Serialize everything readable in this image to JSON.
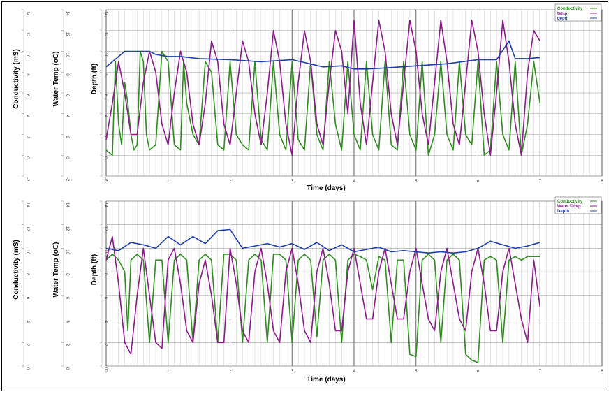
{
  "chart_data": [
    {
      "type": "line",
      "xlabel": "Time (days)",
      "ylabels": [
        "Conductivity (mS)",
        "Water Temp (oC)",
        "Depth (ft)"
      ],
      "xlim": [
        0,
        8
      ],
      "ylim": [
        -2,
        14
      ],
      "xticks": [
        0,
        1,
        2,
        3,
        4,
        5,
        6,
        7,
        8
      ],
      "yticks": [
        -2,
        0,
        2,
        4,
        6,
        8,
        10,
        12,
        14
      ],
      "colors": {
        "conductivity": "#2e8b1e",
        "temp": "#8b1a8b",
        "depth": "#1f3fa8"
      },
      "legend": [
        "Conductivity",
        "temp",
        "depth"
      ],
      "legend_position": "top-right",
      "grid": true,
      "series": [
        {
          "name": "Conductivity",
          "x": [
            0,
            0.1,
            0.15,
            0.2,
            0.25,
            0.3,
            0.35,
            0.4,
            0.45,
            0.5,
            0.55,
            0.6,
            0.65,
            0.7,
            0.8,
            0.9,
            1.0,
            1.1,
            1.2,
            1.25,
            1.3,
            1.4,
            1.5,
            1.6,
            1.7,
            1.8,
            1.9,
            2.0,
            2.1,
            2.2,
            2.3,
            2.4,
            2.5,
            2.6,
            2.7,
            2.8,
            2.9,
            3.0,
            3.1,
            3.2,
            3.3,
            3.4,
            3.5,
            3.6,
            3.7,
            3.8,
            3.9,
            4.0,
            4.1,
            4.2,
            4.3,
            4.4,
            4.5,
            4.6,
            4.7,
            4.8,
            4.9,
            5.0,
            5.1,
            5.2,
            5.3,
            5.4,
            5.5,
            5.6,
            5.7,
            5.8,
            5.9,
            6.0,
            6.1,
            6.2,
            6.3,
            6.4,
            6.5,
            6.6,
            6.7,
            6.8,
            6.9,
            7.0
          ],
          "values": [
            0.5,
            0,
            9,
            3,
            1,
            7,
            5,
            2,
            0.5,
            1,
            10,
            9,
            2,
            0.5,
            1,
            10,
            9,
            1,
            0.5,
            9,
            5,
            2,
            1,
            9,
            8,
            1,
            0.5,
            9,
            2,
            1,
            0.5,
            9,
            1.5,
            0.5,
            9,
            2,
            0.5,
            9,
            1.5,
            0.5,
            9,
            2,
            0.5,
            9,
            3,
            0.5,
            9,
            2,
            0.5,
            9,
            2,
            0.5,
            9,
            1,
            0.5,
            9,
            2,
            0.5,
            9,
            0,
            2,
            9,
            2,
            0.5,
            9,
            2,
            1,
            9,
            0,
            0.5,
            9,
            2,
            0.5,
            9,
            0,
            3,
            9,
            5
          ]
        },
        {
          "name": "temp",
          "x": [
            0,
            0.1,
            0.2,
            0.3,
            0.4,
            0.5,
            0.6,
            0.7,
            0.8,
            0.9,
            1.0,
            1.1,
            1.2,
            1.3,
            1.4,
            1.5,
            1.6,
            1.7,
            1.8,
            1.9,
            2.0,
            2.1,
            2.2,
            2.3,
            2.4,
            2.5,
            2.6,
            2.7,
            2.8,
            2.9,
            3.0,
            3.1,
            3.2,
            3.3,
            3.4,
            3.5,
            3.6,
            3.7,
            3.8,
            3.9,
            4.0,
            4.1,
            4.2,
            4.3,
            4.4,
            4.5,
            4.6,
            4.7,
            4.8,
            4.9,
            5.0,
            5.1,
            5.2,
            5.3,
            5.4,
            5.5,
            5.6,
            5.7,
            5.8,
            5.9,
            6.0,
            6.1,
            6.2,
            6.3,
            6.4,
            6.5,
            6.6,
            6.7,
            6.8,
            6.9,
            7.0
          ],
          "values": [
            1.5,
            5,
            9,
            6,
            2,
            2,
            7,
            10,
            8,
            3,
            1,
            6,
            10,
            8,
            3,
            1,
            5,
            11,
            9,
            3,
            1,
            6,
            11,
            9,
            4,
            1,
            6,
            12,
            9,
            3,
            0,
            7,
            12,
            9,
            3,
            1,
            7,
            12,
            10,
            4,
            13,
            5,
            1,
            7,
            13,
            10,
            4,
            1,
            7,
            13,
            10,
            4,
            1,
            7,
            13,
            9,
            3,
            1,
            7,
            13,
            10,
            4,
            0,
            6,
            13,
            9,
            3,
            0,
            8,
            12,
            11
          ]
        },
        {
          "name": "depth",
          "x": [
            0,
            0.1,
            0.2,
            0.3,
            0.5,
            0.7,
            0.8,
            1.0,
            1.2,
            1.5,
            2.0,
            2.5,
            3.0,
            3.5,
            3.8,
            4.0,
            4.2,
            4.5,
            5.0,
            5.5,
            6.0,
            6.3,
            6.5,
            6.6,
            6.8,
            7.0
          ],
          "values": [
            8.5,
            9,
            9.5,
            10,
            10,
            10,
            9.7,
            9.5,
            9.5,
            9.3,
            9.2,
            9,
            9.2,
            8.5,
            8.6,
            8.3,
            8.3,
            8.4,
            8.6,
            8.8,
            9.2,
            9.2,
            11,
            9.3,
            9.3,
            9.4
          ]
        }
      ]
    },
    {
      "type": "line",
      "xlabel": "Time (days)",
      "ylabels": [
        "Conductivity (mS)",
        "Water Temp (oC)",
        "Depth (ft)"
      ],
      "xlim": [
        0,
        8
      ],
      "ylim": [
        0,
        14
      ],
      "xticks": [
        0,
        1,
        2,
        3,
        4,
        5,
        6,
        7,
        8
      ],
      "yticks": [
        0,
        2,
        4,
        6,
        8,
        10,
        12,
        14
      ],
      "colors": {
        "conductivity": "#2e8b1e",
        "temp": "#8b1a8b",
        "depth": "#1f3fa8"
      },
      "legend": [
        "Conductivity",
        "Water Temp",
        "Depth"
      ],
      "legend_position": "top-right",
      "grid": true,
      "series": [
        {
          "name": "Conductivity",
          "x": [
            0,
            0.1,
            0.2,
            0.3,
            0.35,
            0.4,
            0.5,
            0.6,
            0.7,
            0.8,
            0.9,
            1.0,
            1.1,
            1.2,
            1.3,
            1.4,
            1.5,
            1.6,
            1.7,
            1.8,
            1.9,
            2.0,
            2.1,
            2.2,
            2.3,
            2.4,
            2.5,
            2.6,
            2.7,
            2.8,
            2.9,
            3.0,
            3.1,
            3.2,
            3.3,
            3.4,
            3.5,
            3.6,
            3.7,
            3.8,
            3.9,
            4.0,
            4.1,
            4.2,
            4.3,
            4.4,
            4.5,
            4.6,
            4.7,
            4.8,
            4.9,
            5.0,
            5.1,
            5.2,
            5.3,
            5.4,
            5.5,
            5.6,
            5.7,
            5.8,
            5.9,
            6.0,
            6.1,
            6.2,
            6.3,
            6.4,
            6.5,
            6.6,
            6.7,
            6.8,
            6.9,
            7.0
          ],
          "values": [
            9,
            9.5,
            9,
            8,
            3,
            9,
            9.5,
            9,
            2,
            9,
            9,
            2,
            9,
            9.5,
            9,
            2,
            9,
            9.5,
            9,
            2,
            9.5,
            9.5,
            9,
            2,
            9,
            9.5,
            9,
            2,
            9.5,
            9.5,
            9,
            2,
            9,
            9.5,
            9,
            2.5,
            9,
            9.5,
            9,
            2,
            9,
            9.5,
            9.3,
            9,
            6.5,
            9.3,
            9,
            2,
            9,
            9,
            1,
            0.8,
            9,
            9.5,
            9,
            2,
            9,
            9.5,
            9,
            1,
            0.5,
            0.3,
            9,
            9.3,
            9,
            2,
            9,
            9.3,
            9,
            9.3,
            9.3,
            9.3
          ]
        },
        {
          "name": "Water Temp",
          "x": [
            0,
            0.1,
            0.2,
            0.3,
            0.4,
            0.5,
            0.6,
            0.7,
            0.8,
            0.9,
            1.0,
            1.1,
            1.2,
            1.3,
            1.4,
            1.5,
            1.6,
            1.7,
            1.8,
            1.9,
            2.0,
            2.1,
            2.2,
            2.3,
            2.4,
            2.5,
            2.6,
            2.7,
            2.8,
            2.9,
            3.0,
            3.1,
            3.2,
            3.3,
            3.4,
            3.5,
            3.6,
            3.7,
            3.8,
            3.9,
            4.0,
            4.1,
            4.2,
            4.3,
            4.4,
            4.5,
            4.6,
            4.7,
            4.8,
            4.9,
            5.0,
            5.1,
            5.2,
            5.3,
            5.4,
            5.5,
            5.6,
            5.7,
            5.8,
            5.9,
            6.0,
            6.1,
            6.2,
            6.3,
            6.4,
            6.5,
            6.6,
            6.7,
            6.8,
            6.9,
            7.0
          ],
          "values": [
            9,
            11,
            7,
            2,
            1,
            6,
            10,
            6,
            2,
            1.5,
            9,
            10,
            7,
            3,
            2,
            7,
            9,
            6,
            2,
            2,
            10,
            7,
            3,
            2,
            8,
            10,
            7,
            3,
            2,
            8,
            10,
            7,
            3,
            2,
            8,
            10,
            7,
            3,
            3,
            8,
            10,
            7,
            4,
            4,
            8,
            10,
            7,
            4,
            4,
            8,
            10,
            7,
            4,
            3,
            8,
            10,
            7,
            4,
            3,
            8,
            10,
            7,
            3,
            3,
            8,
            10,
            7,
            4,
            2,
            9,
            5
          ]
        },
        {
          "name": "Depth",
          "x": [
            0,
            0.2,
            0.4,
            0.6,
            0.8,
            1.0,
            1.2,
            1.4,
            1.6,
            1.8,
            2.0,
            2.2,
            2.4,
            2.6,
            2.8,
            3.0,
            3.2,
            3.4,
            3.6,
            3.8,
            4.0,
            4.2,
            4.4,
            4.6,
            4.8,
            5.0,
            5.2,
            5.4,
            5.6,
            5.8,
            6.0,
            6.2,
            6.4,
            6.6,
            6.8,
            7.0
          ],
          "values": [
            10,
            9.8,
            10.5,
            10.3,
            10,
            11,
            10.3,
            11,
            10.4,
            11.5,
            11.6,
            10,
            10.2,
            10.4,
            10.1,
            10.4,
            9.9,
            10.5,
            9.8,
            10.3,
            9.7,
            9.9,
            10.1,
            9.7,
            9.8,
            9.7,
            9.6,
            9.7,
            9.6,
            9.7,
            10,
            10.6,
            10.3,
            10,
            10.2,
            10.5
          ]
        }
      ]
    }
  ]
}
